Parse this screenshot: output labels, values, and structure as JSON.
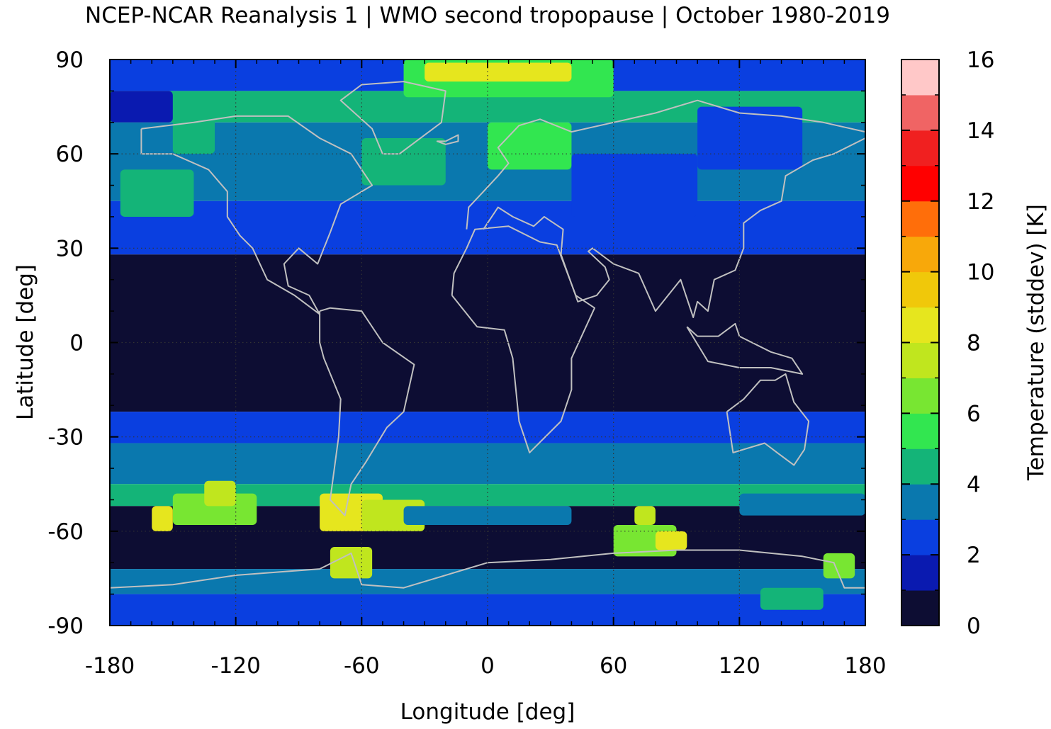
{
  "title": "NCEP-NCAR Reanalysis 1 | WMO second tropopause | October 1980-2019",
  "map": {
    "type": "heatmap",
    "xlabel": "Longitude [deg]",
    "ylabel": "Latitude [deg]",
    "xlim": [
      -180,
      180
    ],
    "ylim": [
      -90,
      90
    ],
    "xticks": [
      "-180",
      "-120",
      "-60",
      "0",
      "60",
      "120",
      "180"
    ],
    "xtick_values": [
      -180,
      -120,
      -60,
      0,
      60,
      120,
      180
    ],
    "yticks": [
      "90",
      "60",
      "30",
      "0",
      "-30",
      "-60",
      "-90"
    ],
    "ytick_values": [
      90,
      60,
      30,
      0,
      -30,
      -60,
      -90
    ],
    "grid": true,
    "coastline_color": "#c0c0c0",
    "colorbar": {
      "label": "Temperature (stddev) [K]",
      "range": [
        0,
        16
      ],
      "ticks": [
        "0",
        "2",
        "4",
        "6",
        "8",
        "10",
        "12",
        "14",
        "16"
      ],
      "tick_values": [
        0,
        2,
        4,
        6,
        8,
        10,
        12,
        14,
        16
      ],
      "step": 1,
      "colors": [
        "#0d0d33",
        "#0a1ab0",
        "#0a3fe0",
        "#0a78ae",
        "#14b478",
        "#32e650",
        "#78e632",
        "#c0e61e",
        "#e6e61e",
        "#f0c80a",
        "#f8a80a",
        "#ff6e0a",
        "#ff0000",
        "#f02020",
        "#f06464",
        "#ffc8c8"
      ]
    },
    "bands": [
      {
        "lat": [
          80,
          90
        ],
        "level": 2
      },
      {
        "lat": [
          70,
          80
        ],
        "level": 4
      },
      {
        "lat": [
          45,
          70
        ],
        "level": 3
      },
      {
        "lat": [
          28,
          45
        ],
        "level": 2
      },
      {
        "lat": [
          -22,
          28
        ],
        "level": 0
      },
      {
        "lat": [
          -32,
          -22
        ],
        "level": 2
      },
      {
        "lat": [
          -45,
          -32
        ],
        "level": 3
      },
      {
        "lat": [
          -52,
          -45
        ],
        "level": 4
      },
      {
        "lat": [
          -72,
          -52
        ],
        "level": 0
      },
      {
        "lat": [
          -80,
          -72
        ],
        "level": 3
      },
      {
        "lat": [
          -90,
          -80
        ],
        "level": 2
      }
    ],
    "patches": [
      {
        "lon": [
          -40,
          60
        ],
        "lat": [
          78,
          90
        ],
        "level": 5
      },
      {
        "lon": [
          -30,
          40
        ],
        "lat": [
          83,
          89
        ],
        "level": 8
      },
      {
        "lon": [
          -150,
          -130
        ],
        "lat": [
          60,
          72
        ],
        "level": 4
      },
      {
        "lon": [
          -175,
          -140
        ],
        "lat": [
          40,
          55
        ],
        "level": 4
      },
      {
        "lon": [
          -60,
          -20
        ],
        "lat": [
          50,
          65
        ],
        "level": 4
      },
      {
        "lon": [
          0,
          40
        ],
        "lat": [
          55,
          70
        ],
        "level": 5
      },
      {
        "lon": [
          40,
          100
        ],
        "lat": [
          40,
          60
        ],
        "level": 2
      },
      {
        "lon": [
          100,
          150
        ],
        "lat": [
          55,
          75
        ],
        "level": 2
      },
      {
        "lon": [
          -180,
          -150
        ],
        "lat": [
          70,
          80
        ],
        "level": 1
      },
      {
        "lon": [
          -150,
          -110
        ],
        "lat": [
          -58,
          -48
        ],
        "level": 6
      },
      {
        "lon": [
          -135,
          -120
        ],
        "lat": [
          -52,
          -44
        ],
        "level": 7
      },
      {
        "lon": [
          -160,
          -150
        ],
        "lat": [
          -60,
          -52
        ],
        "level": 8
      },
      {
        "lon": [
          -80,
          -50
        ],
        "lat": [
          -60,
          -48
        ],
        "level": 8
      },
      {
        "lon": [
          -60,
          -30
        ],
        "lat": [
          -60,
          -50
        ],
        "level": 7
      },
      {
        "lon": [
          -75,
          -55
        ],
        "lat": [
          -75,
          -65
        ],
        "level": 7
      },
      {
        "lon": [
          60,
          90
        ],
        "lat": [
          -68,
          -58
        ],
        "level": 6
      },
      {
        "lon": [
          80,
          95
        ],
        "lat": [
          -66,
          -60
        ],
        "level": 8
      },
      {
        "lon": [
          70,
          80
        ],
        "lat": [
          -58,
          -52
        ],
        "level": 7
      },
      {
        "lon": [
          160,
          175
        ],
        "lat": [
          -75,
          -67
        ],
        "level": 6
      },
      {
        "lon": [
          130,
          160
        ],
        "lat": [
          -85,
          -78
        ],
        "level": 4
      },
      {
        "lon": [
          -40,
          40
        ],
        "lat": [
          -58,
          -52
        ],
        "level": 3
      },
      {
        "lon": [
          120,
          180
        ],
        "lat": [
          -55,
          -48
        ],
        "level": 3
      }
    ]
  }
}
